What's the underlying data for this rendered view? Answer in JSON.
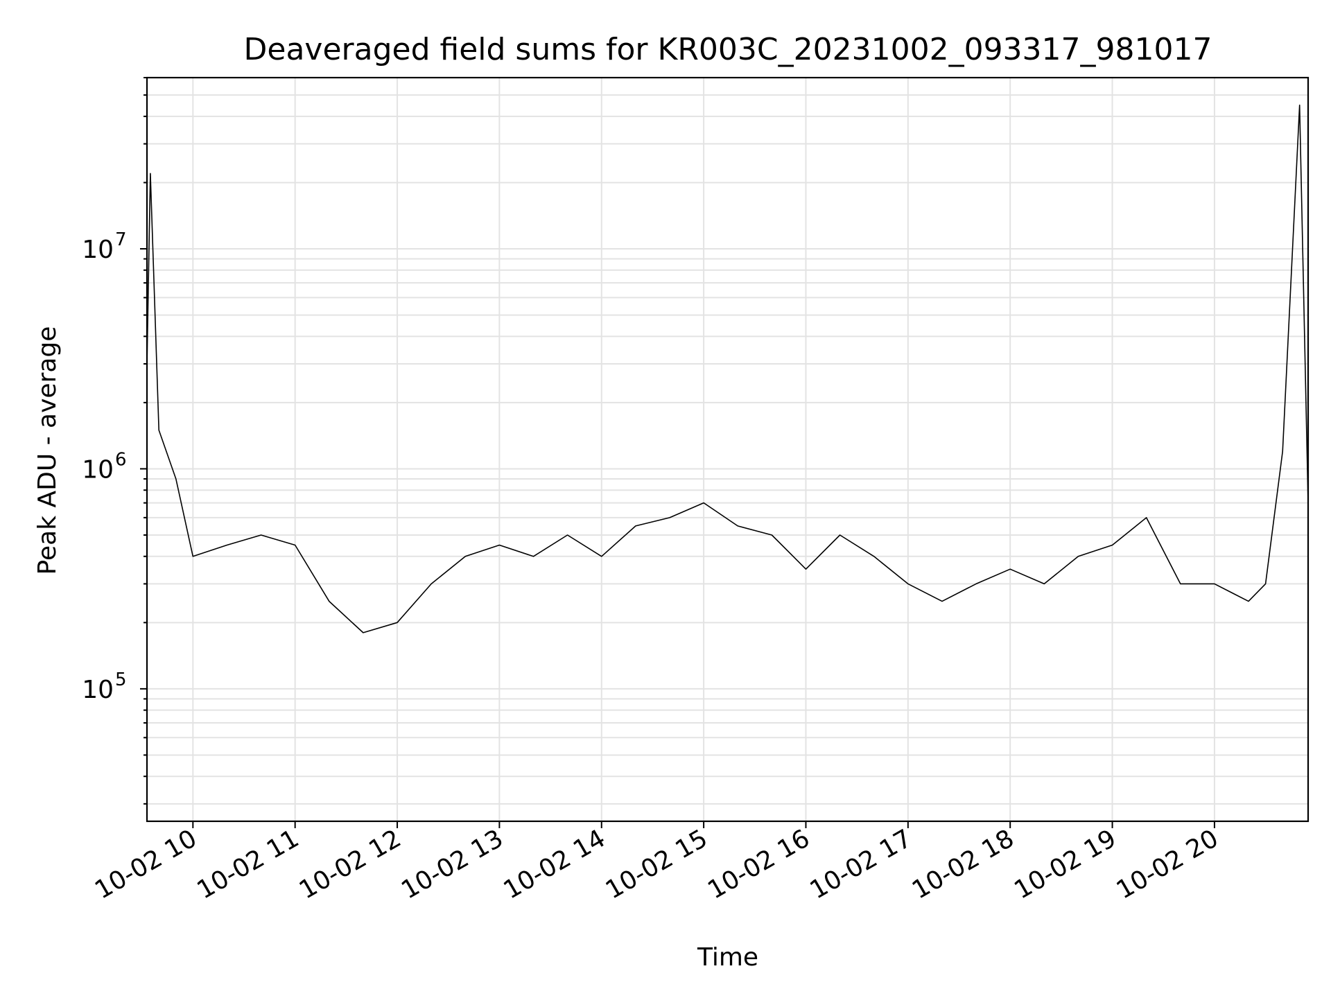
{
  "chart_data": {
    "type": "line",
    "title": "Deaveraged field sums for KR003C_20231002_093317_981017",
    "xlabel": "Time",
    "ylabel": "Peak ADU - average",
    "yscale": "log",
    "grid": true,
    "line_color": "#000000",
    "xlim": [
      "2023-10-02 09:33",
      "2023-10-02 20:55"
    ],
    "ylim": [
      25000,
      60000000
    ],
    "x_ticks": [
      "10-02 10",
      "10-02 11",
      "10-02 12",
      "10-02 13",
      "10-02 14",
      "10-02 15",
      "10-02 16",
      "10-02 17",
      "10-02 18",
      "10-02 19",
      "10-02 20"
    ],
    "y_ticks": [
      {
        "base": "10",
        "exp": "5"
      },
      {
        "base": "10",
        "exp": "6"
      },
      {
        "base": "10",
        "exp": "7"
      }
    ],
    "series": [
      {
        "x": [
          "2023-10-02 09:33",
          "2023-10-02 09:35",
          "2023-10-02 09:40",
          "2023-10-02 09:50",
          "2023-10-02 10:00",
          "2023-10-02 10:20",
          "2023-10-02 10:40",
          "2023-10-02 11:00",
          "2023-10-02 11:20",
          "2023-10-02 11:40",
          "2023-10-02 12:00",
          "2023-10-02 12:20",
          "2023-10-02 12:40",
          "2023-10-02 13:00",
          "2023-10-02 13:20",
          "2023-10-02 13:40",
          "2023-10-02 14:00",
          "2023-10-02 14:20",
          "2023-10-02 14:40",
          "2023-10-02 15:00",
          "2023-10-02 15:20",
          "2023-10-02 15:40",
          "2023-10-02 16:00",
          "2023-10-02 16:20",
          "2023-10-02 16:40",
          "2023-10-02 17:00",
          "2023-10-02 17:20",
          "2023-10-02 17:40",
          "2023-10-02 18:00",
          "2023-10-02 18:20",
          "2023-10-02 18:40",
          "2023-10-02 19:00",
          "2023-10-02 19:20",
          "2023-10-02 19:40",
          "2023-10-02 20:00",
          "2023-10-02 20:20",
          "2023-10-02 20:30",
          "2023-10-02 20:40",
          "2023-10-02 20:50",
          "2023-10-02 20:55"
        ],
        "y": [
          3000000,
          22000000,
          1500000,
          900000,
          400000,
          450000,
          500000,
          450000,
          250000,
          180000,
          200000,
          300000,
          400000,
          450000,
          400000,
          500000,
          400000,
          550000,
          600000,
          700000,
          550000,
          500000,
          350000,
          500000,
          400000,
          300000,
          250000,
          300000,
          350000,
          300000,
          400000,
          450000,
          600000,
          300000,
          300000,
          250000,
          300000,
          1200000,
          45000000,
          700000
        ]
      }
    ]
  }
}
